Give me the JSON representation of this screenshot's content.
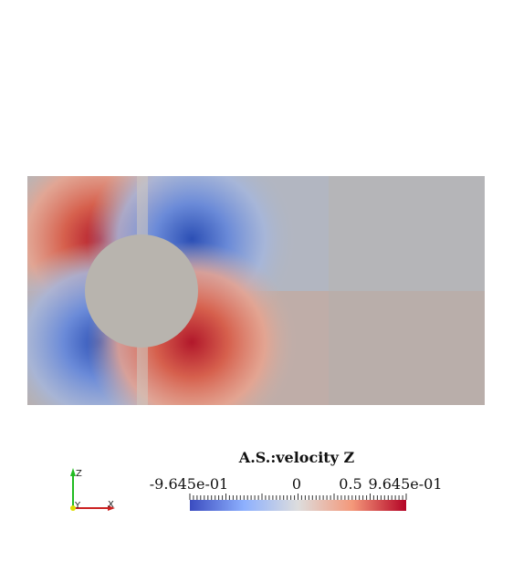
{
  "colorbar": {
    "title": "A.S.:velocity Z",
    "label_min": "-9.645e-01",
    "label_zero": "0",
    "label_half": "0.5",
    "label_max": "9.645e-01",
    "range": [
      -0.9645,
      0.9645
    ],
    "colormap": "cool-to-warm",
    "color_low": "#3b4cc0",
    "color_mid": "#dddddd",
    "color_high": "#b40426"
  },
  "axes_triad": {
    "z_label": "Z",
    "y_label": "Y",
    "x_label": "X",
    "z_color": "#22bb22",
    "x_color": "#cc2222",
    "y_color": "#dddd00"
  }
}
